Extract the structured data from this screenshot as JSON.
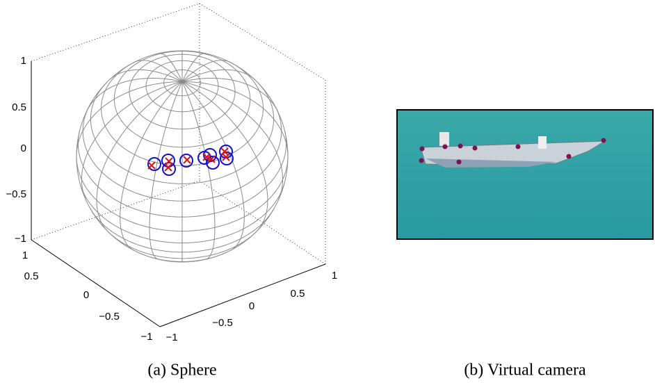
{
  "figure": {
    "panels": [
      {
        "caption": "(a) Sphere",
        "z_ticks": [
          "1",
          "0.5",
          "0",
          "−0.5",
          "−1"
        ],
        "x_ticks": [
          "1",
          "0.5",
          "0",
          "−0.5",
          "−1"
        ],
        "y_ticks": [
          "−1",
          "−0.5",
          "0",
          "0.5",
          "1"
        ]
      },
      {
        "caption": "(b) Virtual camera"
      }
    ]
  }
}
